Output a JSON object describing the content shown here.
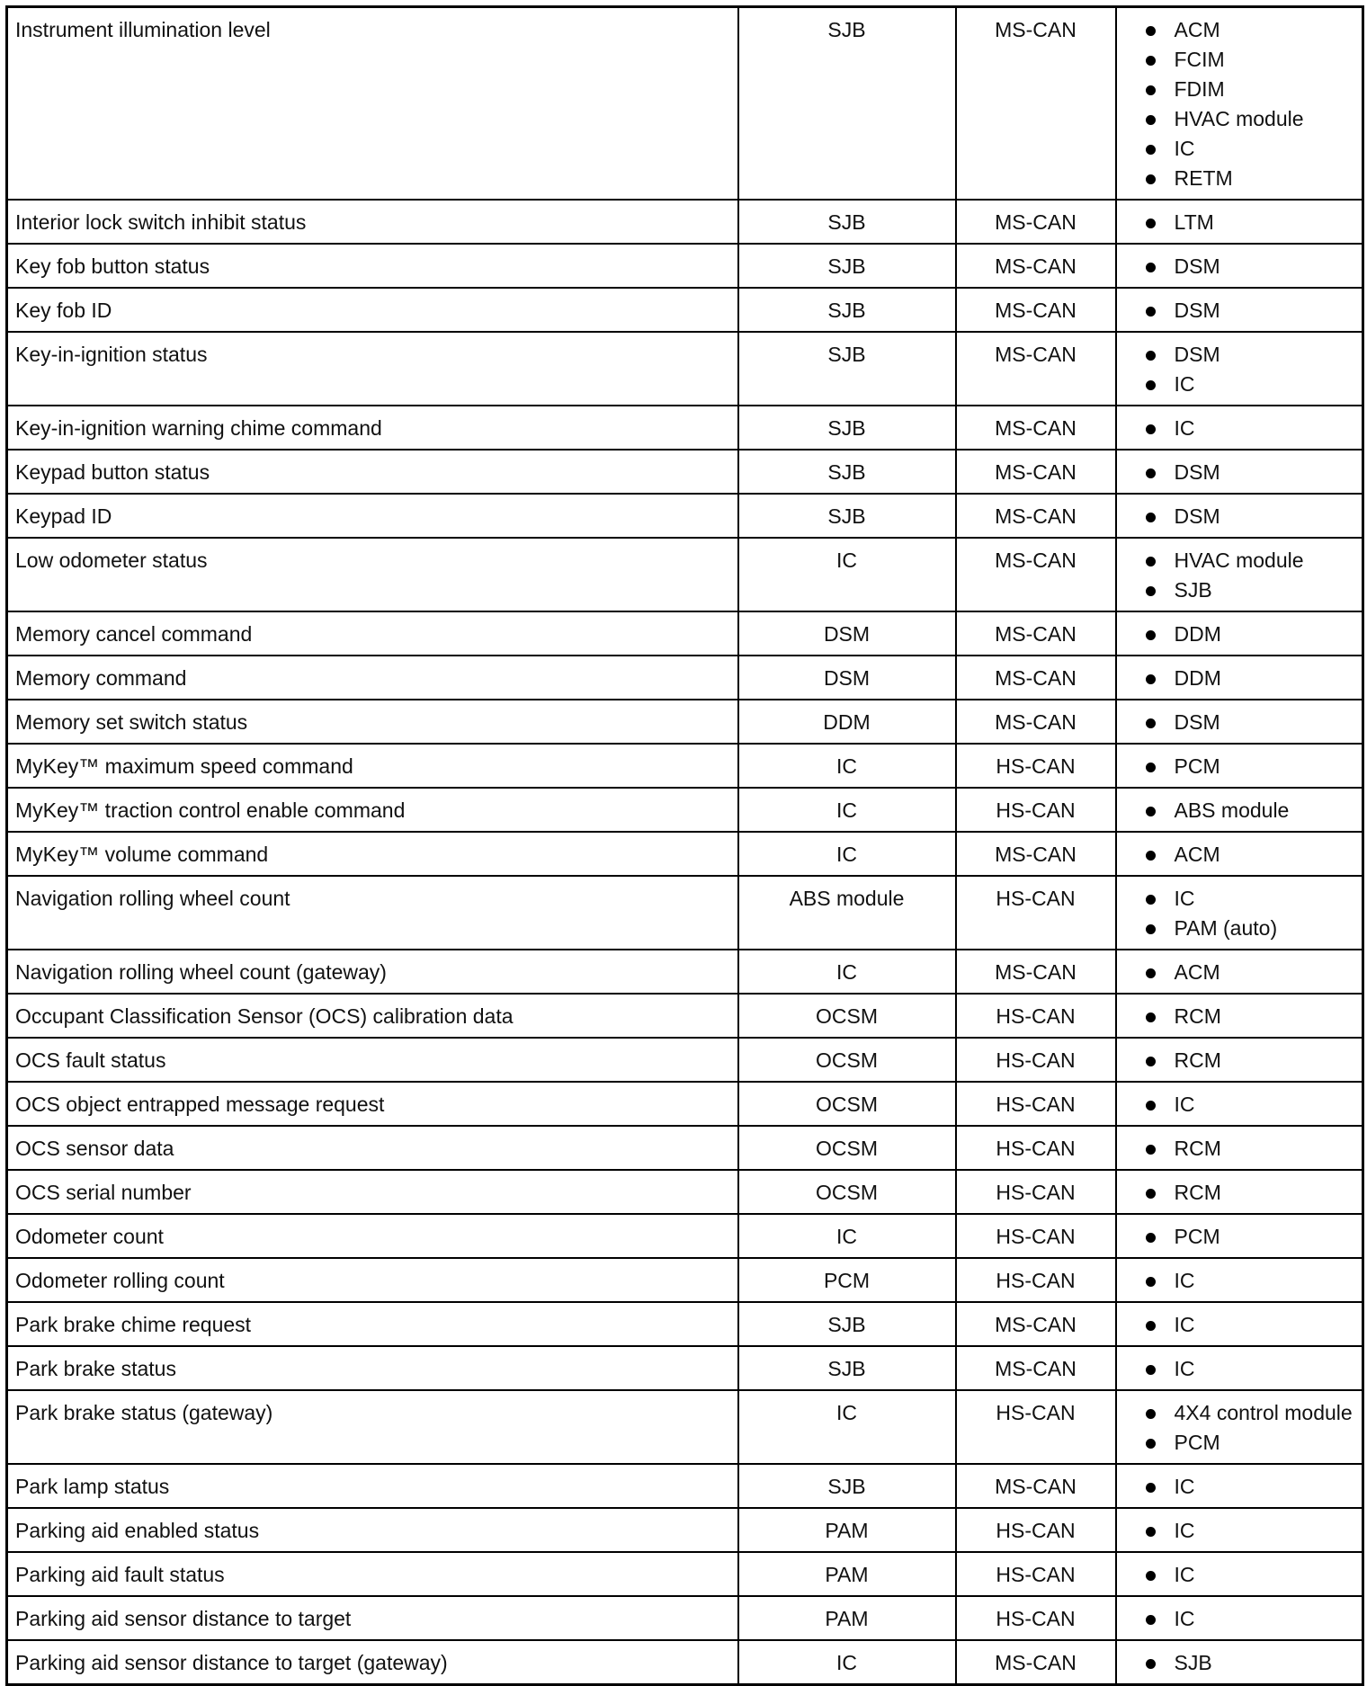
{
  "table": {
    "rows": [
      [
        "Instrument illumination level",
        "SJB",
        "MS-CAN",
        [
          "ACM",
          "FCIM",
          "FDIM",
          "HVAC module",
          "IC",
          "RETM"
        ]
      ],
      [
        "Interior lock switch inhibit status",
        "SJB",
        "MS-CAN",
        [
          "LTM"
        ]
      ],
      [
        "Key fob button status",
        "SJB",
        "MS-CAN",
        [
          "DSM"
        ]
      ],
      [
        "Key fob ID",
        "SJB",
        "MS-CAN",
        [
          "DSM"
        ]
      ],
      [
        "Key-in-ignition status",
        "SJB",
        "MS-CAN",
        [
          "DSM",
          "IC"
        ]
      ],
      [
        "Key-in-ignition warning chime command",
        "SJB",
        "MS-CAN",
        [
          "IC"
        ]
      ],
      [
        "Keypad button status",
        "SJB",
        "MS-CAN",
        [
          "DSM"
        ]
      ],
      [
        "Keypad ID",
        "SJB",
        "MS-CAN",
        [
          "DSM"
        ]
      ],
      [
        "Low odometer status",
        "IC",
        "MS-CAN",
        [
          "HVAC module",
          "SJB"
        ]
      ],
      [
        "Memory cancel command",
        "DSM",
        "MS-CAN",
        [
          "DDM"
        ]
      ],
      [
        "Memory command",
        "DSM",
        "MS-CAN",
        [
          "DDM"
        ]
      ],
      [
        "Memory set switch status",
        "DDM",
        "MS-CAN",
        [
          "DSM"
        ]
      ],
      [
        "MyKey™ maximum speed command",
        "IC",
        "HS-CAN",
        [
          "PCM"
        ]
      ],
      [
        "MyKey™ traction control enable command",
        "IC",
        "HS-CAN",
        [
          "ABS module"
        ]
      ],
      [
        "MyKey™ volume command",
        "IC",
        "MS-CAN",
        [
          "ACM"
        ]
      ],
      [
        "Navigation rolling wheel count",
        "ABS module",
        "HS-CAN",
        [
          "IC",
          "PAM (auto)"
        ]
      ],
      [
        "Navigation rolling wheel count (gateway)",
        "IC",
        "MS-CAN",
        [
          "ACM"
        ]
      ],
      [
        "Occupant Classification Sensor (OCS) calibration data",
        "OCSM",
        "HS-CAN",
        [
          "RCM"
        ]
      ],
      [
        "OCS fault status",
        "OCSM",
        "HS-CAN",
        [
          "RCM"
        ]
      ],
      [
        "OCS object entrapped message request",
        "OCSM",
        "HS-CAN",
        [
          "IC"
        ]
      ],
      [
        "OCS sensor data",
        "OCSM",
        "HS-CAN",
        [
          "RCM"
        ]
      ],
      [
        "OCS serial number",
        "OCSM",
        "HS-CAN",
        [
          "RCM"
        ]
      ],
      [
        "Odometer count",
        "IC",
        "HS-CAN",
        [
          "PCM"
        ]
      ],
      [
        "Odometer rolling count",
        "PCM",
        "HS-CAN",
        [
          "IC"
        ]
      ],
      [
        "Park brake chime request",
        "SJB",
        "MS-CAN",
        [
          "IC"
        ]
      ],
      [
        "Park brake status",
        "SJB",
        "MS-CAN",
        [
          "IC"
        ]
      ],
      [
        "Park brake status (gateway)",
        "IC",
        "HS-CAN",
        [
          "4X4 control module",
          "PCM"
        ]
      ],
      [
        "Park lamp status",
        "SJB",
        "MS-CAN",
        [
          "IC"
        ]
      ],
      [
        "Parking aid enabled status",
        "PAM",
        "HS-CAN",
        [
          "IC"
        ]
      ],
      [
        "Parking aid fault status",
        "PAM",
        "HS-CAN",
        [
          "IC"
        ]
      ],
      [
        "Parking aid sensor distance to target",
        "PAM",
        "HS-CAN",
        [
          "IC"
        ]
      ],
      [
        "Parking aid sensor distance to target (gateway)",
        "IC",
        "MS-CAN",
        [
          "SJB"
        ]
      ]
    ]
  }
}
